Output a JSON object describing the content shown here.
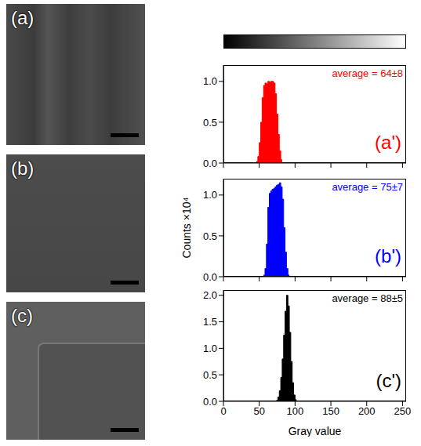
{
  "panels": [
    {
      "label": "(a)"
    },
    {
      "label": "(b)"
    },
    {
      "label": "(c)"
    }
  ],
  "chart_data": [
    {
      "type": "histogram",
      "label": "(a')",
      "annotation": "average = 64±8",
      "color": "#ff0000",
      "bins": [
        46,
        48,
        50,
        52,
        54,
        56,
        58,
        60,
        62,
        64,
        66,
        68,
        70,
        72,
        74,
        76,
        78,
        80,
        82
      ],
      "counts": [
        0.02,
        0.08,
        0.25,
        0.5,
        0.8,
        0.95,
        0.98,
        0.97,
        1.0,
        0.99,
        1.0,
        1.0,
        0.98,
        0.85,
        0.6,
        0.35,
        0.15,
        0.04
      ],
      "xlim": [
        0,
        255
      ],
      "xticks": [
        0,
        50,
        100,
        150,
        200,
        250
      ],
      "ylim": [
        0,
        1.2
      ],
      "yticks": [
        {
          "value": 0,
          "label": "0.0"
        },
        0.5,
        {
          "value": 1,
          "label": "1.0"
        }
      ],
      "tick_labels": "y"
    },
    {
      "type": "histogram",
      "label": "(b')",
      "annotation": "average = 75±7",
      "color": "#0000ff",
      "y_label": "Counts ×10⁴",
      "bins": [
        56,
        58,
        60,
        62,
        64,
        66,
        68,
        70,
        72,
        74,
        76,
        78,
        80,
        82,
        84,
        86,
        88,
        90,
        92
      ],
      "counts": [
        0.02,
        0.1,
        0.4,
        0.85,
        1.02,
        1.05,
        1.07,
        1.08,
        1.1,
        1.12,
        1.13,
        1.15,
        1.1,
        0.95,
        0.6,
        0.3,
        0.1,
        0.02
      ],
      "xlim": [
        0,
        255
      ],
      "xticks": [
        0,
        50,
        100,
        150,
        200,
        250
      ],
      "ylim": [
        0,
        1.2
      ],
      "yticks": [
        {
          "value": 0,
          "label": "0.0"
        },
        0.5,
        {
          "value": 1,
          "label": "1.0"
        }
      ],
      "tick_labels": "y"
    },
    {
      "type": "histogram",
      "label": "(c')",
      "annotation": "average = 88±5",
      "color": "#000000",
      "x_label": "Gray value",
      "bins": [
        74,
        76,
        78,
        80,
        82,
        84,
        86,
        88,
        90,
        92,
        94,
        96,
        98,
        100,
        102
      ],
      "counts": [
        0.02,
        0.08,
        0.2,
        0.45,
        0.8,
        1.25,
        1.7,
        2.0,
        1.8,
        1.3,
        0.75,
        0.35,
        0.12,
        0.03
      ],
      "xlim": [
        0,
        255
      ],
      "xticks": [
        0,
        50,
        100,
        150,
        200,
        250
      ],
      "ylim": [
        0,
        2.1
      ],
      "yticks": [
        {
          "value": 0,
          "label": "0.0"
        },
        0.5,
        {
          "value": 1,
          "label": "1.0"
        },
        1.5,
        {
          "value": 2,
          "label": "2.0"
        }
      ]
    }
  ]
}
